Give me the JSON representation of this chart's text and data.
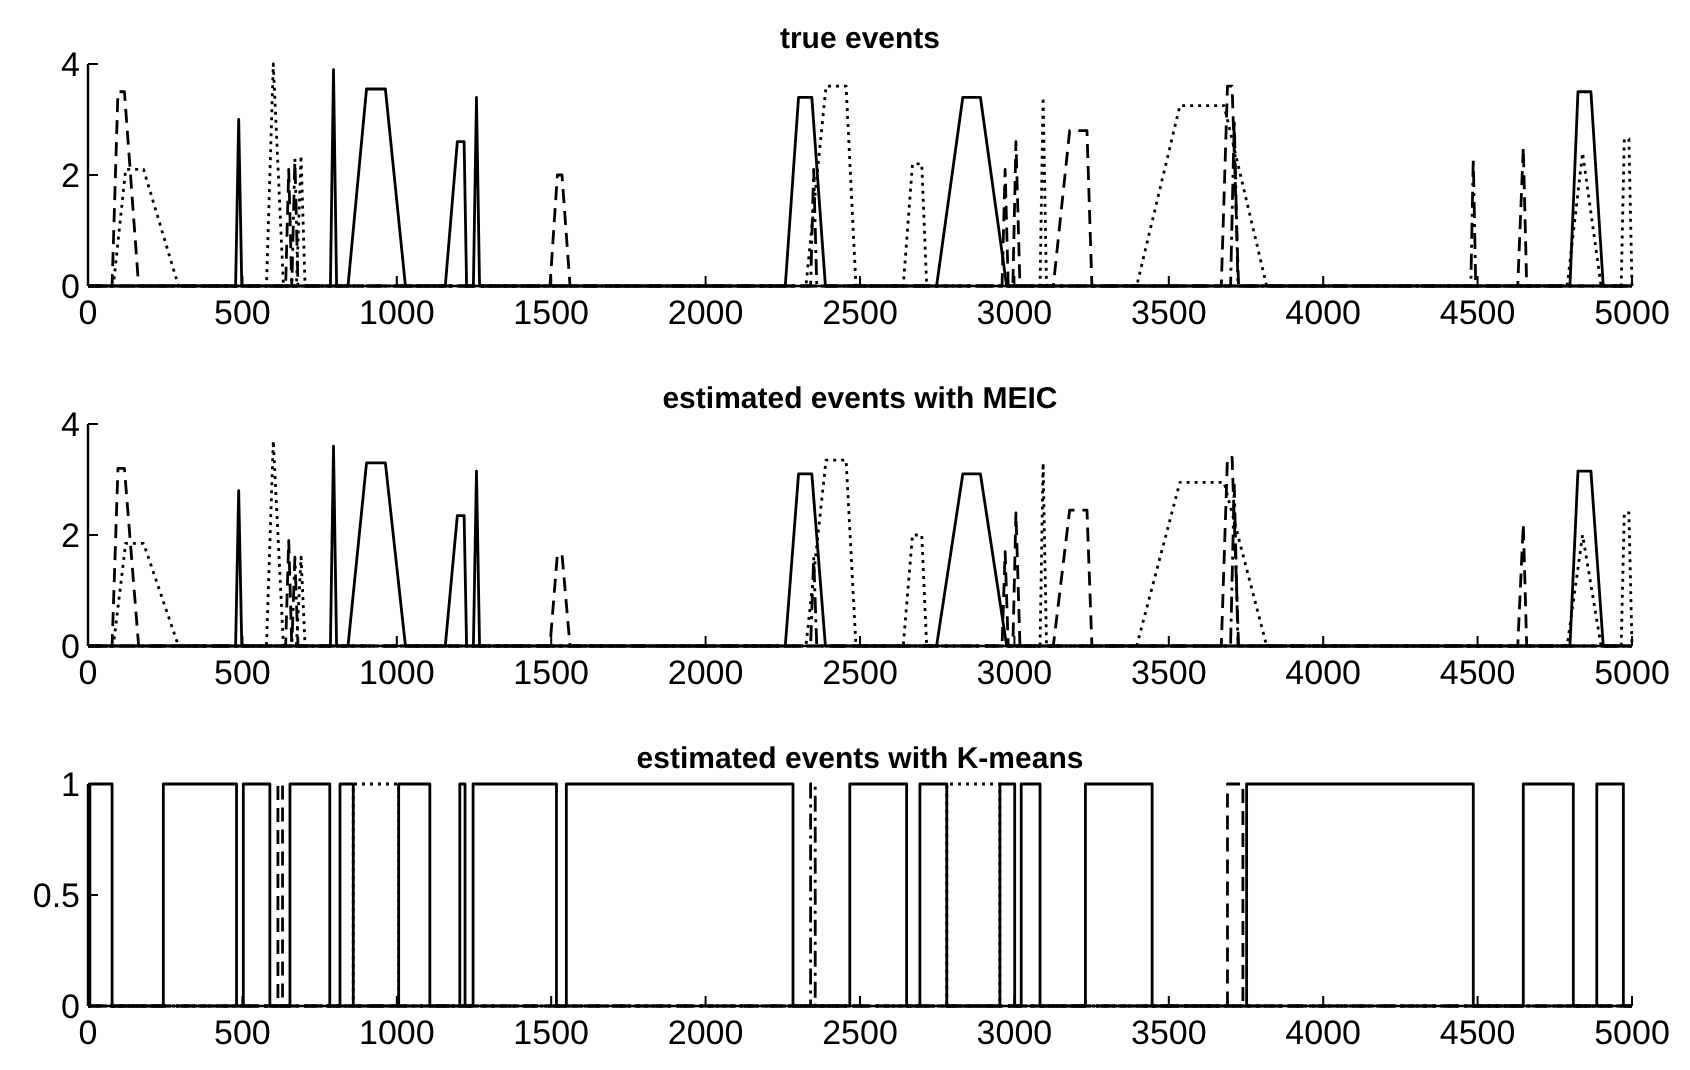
{
  "chart_data": [
    {
      "type": "line",
      "title": "true events",
      "xlim": [
        0,
        5000
      ],
      "xticks": [
        0,
        500,
        1000,
        1500,
        2000,
        2500,
        3000,
        3500,
        4000,
        4500,
        5000
      ],
      "ylim": [
        0,
        4
      ],
      "yticks": [
        0,
        2,
        4
      ],
      "grid": false,
      "series": [
        {
          "color": "#000000",
          "line_style": "solid",
          "x": [
            0,
            478,
            488,
            498,
            785,
            795,
            805,
            842,
            902,
            963,
            1028,
            1157,
            1196,
            1218,
            1226,
            1248,
            1258,
            1268,
            2258,
            2301,
            2344,
            2388,
            2748,
            2833,
            2890,
            2975,
            4799,
            4825,
            4867,
            4907,
            5000
          ],
          "values": [
            0,
            0,
            3,
            0,
            0,
            3.9,
            0,
            0,
            3.55,
            3.55,
            0,
            0,
            2.6,
            2.6,
            0,
            0,
            3.4,
            0,
            0,
            3.4,
            3.4,
            0,
            0,
            3.4,
            3.4,
            0,
            0,
            3.5,
            3.5,
            0,
            0
          ]
        },
        {
          "color": "#000000",
          "line_style": "dashed",
          "x": [
            0,
            78,
            97,
            118,
            164,
            640,
            650,
            660,
            1496,
            1520,
            1535,
            1561,
            2960,
            2970,
            2980,
            2995,
            3005,
            3018,
            3126,
            3179,
            3235,
            3251,
            3670,
            3690,
            3705,
            3726,
            4630,
            4648,
            4659,
            5000
          ],
          "values": [
            0,
            0,
            3.5,
            3.5,
            0,
            0,
            2.1,
            0,
            0,
            2.0,
            2.0,
            0,
            0,
            2.1,
            0,
            0,
            2.6,
            0,
            0,
            2.8,
            2.8,
            0,
            0,
            3.6,
            3.6,
            0,
            0,
            2.5,
            0,
            0
          ]
        },
        {
          "color": "#000000",
          "line_style": "dashdot",
          "x": [
            0,
            660,
            670,
            680,
            2340,
            2350,
            2360,
            3700,
            3712,
            3724,
            4478,
            4486,
            4494,
            5000
          ],
          "values": [
            0,
            0,
            2.3,
            0,
            0,
            2.1,
            0,
            0,
            3.0,
            0,
            0,
            2.3,
            0,
            0
          ]
        },
        {
          "color": "#000000",
          "line_style": "dotted",
          "x": [
            0,
            82,
            122,
            180,
            293,
            578,
            600,
            633,
            675,
            690,
            703,
            2325,
            2390,
            2455,
            2487,
            2640,
            2670,
            2700,
            2716,
            3083,
            3093,
            3104,
            3396,
            3536,
            3679,
            3817,
            4790,
            4840,
            4900,
            4965,
            4975,
            4990,
            5000
          ],
          "values": [
            0,
            0,
            2.1,
            2.1,
            0,
            0,
            4.0,
            0,
            0,
            2.35,
            0,
            0,
            3.6,
            3.6,
            0,
            0,
            2.2,
            2.2,
            0,
            0,
            3.4,
            0,
            0,
            3.25,
            3.25,
            0,
            0,
            2.4,
            0,
            0,
            2.65,
            2.65,
            0
          ]
        }
      ]
    },
    {
      "type": "line",
      "title": "estimated events with MEIC",
      "xlim": [
        0,
        5000
      ],
      "xticks": [
        0,
        500,
        1000,
        1500,
        2000,
        2500,
        3000,
        3500,
        4000,
        4500,
        5000
      ],
      "ylim": [
        0,
        4
      ],
      "yticks": [
        0,
        2,
        4
      ],
      "grid": false,
      "series": [
        {
          "color": "#000000",
          "line_style": "solid",
          "x": [
            0,
            478,
            488,
            498,
            785,
            795,
            805,
            842,
            902,
            963,
            1028,
            1157,
            1196,
            1218,
            1226,
            1248,
            1258,
            1268,
            2258,
            2301,
            2344,
            2388,
            2748,
            2833,
            2890,
            2975,
            4799,
            4825,
            4867,
            4907,
            5000
          ],
          "values": [
            0,
            0,
            2.8,
            0,
            0,
            3.6,
            0,
            0,
            3.3,
            3.3,
            0,
            0,
            2.35,
            2.35,
            0,
            0,
            3.15,
            0,
            0,
            3.1,
            3.1,
            0,
            0,
            3.1,
            3.1,
            0,
            0,
            3.15,
            3.15,
            0,
            0
          ]
        },
        {
          "color": "#000000",
          "line_style": "dashed",
          "x": [
            0,
            78,
            97,
            118,
            164,
            640,
            650,
            660,
            1496,
            1520,
            1535,
            1561,
            2960,
            2970,
            2980,
            2995,
            3005,
            3018,
            3126,
            3179,
            3235,
            3251,
            3670,
            3690,
            3705,
            3726,
            4630,
            4648,
            4659,
            5000
          ],
          "values": [
            0,
            0,
            3.2,
            3.2,
            0,
            0,
            1.9,
            0,
            0,
            1.65,
            1.65,
            0,
            0,
            1.7,
            0,
            0,
            2.4,
            0,
            0,
            2.45,
            2.45,
            0,
            0,
            3.4,
            3.4,
            0,
            0,
            2.2,
            0,
            0
          ]
        },
        {
          "color": "#000000",
          "line_style": "dashdot",
          "x": [
            0,
            660,
            670,
            680,
            2340,
            2350,
            2360,
            3700,
            3712,
            3724,
            5000
          ],
          "values": [
            0,
            0,
            1.6,
            0,
            0,
            1.6,
            0,
            0,
            2.9,
            0,
            0
          ]
        },
        {
          "color": "#000000",
          "line_style": "dotted",
          "x": [
            0,
            82,
            122,
            180,
            293,
            578,
            600,
            633,
            675,
            690,
            703,
            2325,
            2390,
            2455,
            2487,
            2640,
            2670,
            2700,
            2716,
            3083,
            3093,
            3104,
            3396,
            3536,
            3679,
            3817,
            4790,
            4840,
            4900,
            4965,
            4975,
            4990,
            5000
          ],
          "values": [
            0,
            0,
            1.85,
            1.85,
            0,
            0,
            3.7,
            0,
            0,
            1.6,
            0,
            0,
            3.35,
            3.35,
            0,
            0,
            2.0,
            2.0,
            0,
            0,
            3.3,
            0,
            0,
            2.95,
            2.95,
            0,
            0,
            2.0,
            0,
            0,
            2.4,
            2.4,
            0
          ]
        }
      ]
    },
    {
      "type": "line",
      "title": "estimated events with K-means",
      "xlim": [
        0,
        5000
      ],
      "xticks": [
        0,
        500,
        1000,
        1500,
        2000,
        2500,
        3000,
        3500,
        4000,
        4500,
        5000
      ],
      "ylim": [
        0,
        1
      ],
      "yticks": [
        0,
        0.5,
        1
      ],
      "grid": false,
      "series": [
        {
          "color": "#000000",
          "line_style": "solid",
          "x": [
            0,
            6,
            6,
            78,
            78,
            244,
            244,
            481,
            481,
            503,
            503,
            589,
            589,
            654,
            654,
            783,
            783,
            816,
            816,
            859,
            859,
            1006,
            1006,
            1107,
            1107,
            1204,
            1204,
            1221,
            1221,
            1247,
            1247,
            1517,
            1517,
            1549,
            1549,
            2283,
            2283,
            2467,
            2467,
            2651,
            2651,
            2694,
            2694,
            2781,
            2781,
            2953,
            2953,
            3001,
            3001,
            3022,
            3022,
            3083,
            3083,
            3230,
            3230,
            3446,
            3446,
            3752,
            3752,
            4486,
            4486,
            4648,
            4648,
            4810,
            4810,
            4886,
            4886,
            4972,
            4972,
            5000
          ],
          "values": [
            0,
            0,
            1,
            1,
            0,
            0,
            1,
            1,
            0,
            0,
            1,
            1,
            0,
            0,
            1,
            1,
            0,
            0,
            1,
            1,
            0,
            0,
            1,
            1,
            0,
            0,
            1,
            1,
            0,
            0,
            1,
            1,
            0,
            0,
            1,
            1,
            0,
            0,
            1,
            1,
            0,
            0,
            1,
            1,
            0,
            0,
            1,
            1,
            0,
            0,
            1,
            1,
            0,
            0,
            1,
            1,
            0,
            0,
            1,
            1,
            0,
            0,
            1,
            1,
            0,
            0,
            1,
            1,
            0,
            0
          ]
        },
        {
          "color": "#000000",
          "line_style": "dashed",
          "x": [
            0,
            615,
            615,
            630,
            630,
            3690,
            3690,
            3740,
            3740,
            5000
          ],
          "values": [
            0,
            0,
            1,
            1,
            0,
            0,
            1,
            1,
            0,
            0
          ]
        },
        {
          "color": "#000000",
          "line_style": "dashdot",
          "x": [
            0,
            2340,
            2340,
            2355,
            2355,
            5000
          ],
          "values": [
            0,
            0,
            1,
            1,
            0,
            0
          ]
        },
        {
          "color": "#000000",
          "line_style": "dotted",
          "x": [
            0,
            859,
            859,
            1006,
            1006,
            2781,
            2781,
            2953,
            2953,
            5000
          ],
          "values": [
            0,
            0,
            1,
            1,
            0,
            0,
            1,
            1,
            0,
            0
          ]
        }
      ]
    }
  ]
}
